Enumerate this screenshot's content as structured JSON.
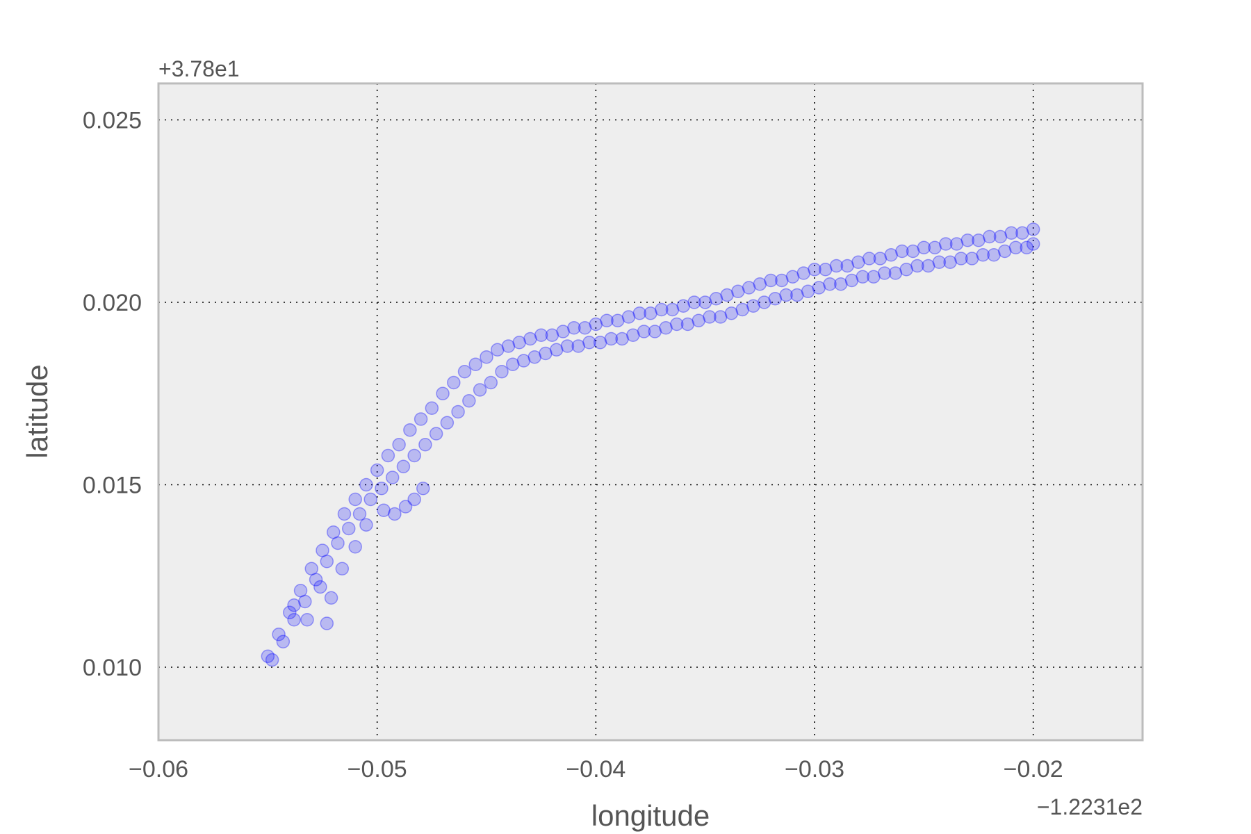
{
  "chart_data": {
    "type": "scatter",
    "title": "",
    "xlabel": "longitude",
    "ylabel": "latitude",
    "x_offset_label": "−1.2231e2",
    "y_offset_label": "+3.78e1",
    "xlim": [
      -0.06,
      -0.015
    ],
    "ylim": [
      0.008,
      0.026
    ],
    "xticks": [
      -0.06,
      -0.05,
      -0.04,
      -0.03,
      -0.02
    ],
    "xtick_labels": [
      "−0.06",
      "−0.05",
      "−0.04",
      "−0.03",
      "−0.02"
    ],
    "yticks": [
      0.01,
      0.015,
      0.02,
      0.025
    ],
    "ytick_labels": [
      "0.010",
      "0.015",
      "0.020",
      "0.025"
    ],
    "grid": true,
    "marker_color": "#0000ff",
    "marker_alpha": 0.22,
    "background_color": "#eeeeee",
    "series": [
      {
        "x": [
          -0.055,
          -0.0545,
          -0.054,
          -0.0535,
          -0.053,
          -0.0525,
          -0.052,
          -0.0515,
          -0.051,
          -0.0505,
          -0.05,
          -0.0495,
          -0.049,
          -0.0485,
          -0.048,
          -0.0475,
          -0.047,
          -0.0465,
          -0.046,
          -0.0455,
          -0.045,
          -0.0445,
          -0.044,
          -0.0435,
          -0.043,
          -0.0425,
          -0.042,
          -0.0415,
          -0.041,
          -0.0405,
          -0.04,
          -0.0395,
          -0.039,
          -0.0385,
          -0.038,
          -0.0375,
          -0.037,
          -0.0365,
          -0.036,
          -0.0355,
          -0.035,
          -0.0345,
          -0.034,
          -0.0335,
          -0.033,
          -0.0325,
          -0.032,
          -0.0315,
          -0.031,
          -0.0305,
          -0.03,
          -0.0295,
          -0.029,
          -0.0285,
          -0.028,
          -0.0275,
          -0.027,
          -0.0265,
          -0.026,
          -0.0255,
          -0.025,
          -0.0245,
          -0.024,
          -0.0235,
          -0.023,
          -0.0225,
          -0.022,
          -0.0215,
          -0.021,
          -0.0205,
          -0.02
        ],
        "y": [
          0.0103,
          0.0109,
          0.0115,
          0.0121,
          0.0127,
          0.0132,
          0.0137,
          0.0142,
          0.0146,
          0.015,
          0.0154,
          0.0158,
          0.0161,
          0.0165,
          0.0168,
          0.0171,
          0.0175,
          0.0178,
          0.0181,
          0.0183,
          0.0185,
          0.0187,
          0.0188,
          0.0189,
          0.019,
          0.0191,
          0.0191,
          0.0192,
          0.0193,
          0.0193,
          0.0194,
          0.0195,
          0.0195,
          0.0196,
          0.0197,
          0.0197,
          0.0198,
          0.0198,
          0.0199,
          0.02,
          0.02,
          0.0201,
          0.0202,
          0.0203,
          0.0204,
          0.0205,
          0.0206,
          0.0206,
          0.0207,
          0.0208,
          0.0209,
          0.0209,
          0.021,
          0.021,
          0.0211,
          0.0212,
          0.0212,
          0.0213,
          0.0214,
          0.0214,
          0.0215,
          0.0215,
          0.0216,
          0.0216,
          0.0217,
          0.0217,
          0.0218,
          0.0218,
          0.0219,
          0.0219,
          0.022
        ]
      },
      {
        "x": [
          -0.0548,
          -0.0543,
          -0.0538,
          -0.0533,
          -0.0528,
          -0.0523,
          -0.0518,
          -0.0513,
          -0.0508,
          -0.0503,
          -0.0498,
          -0.0493,
          -0.0488,
          -0.0483,
          -0.0478,
          -0.0473,
          -0.0468,
          -0.0463,
          -0.0458,
          -0.0453,
          -0.0448,
          -0.0443,
          -0.0438,
          -0.0433,
          -0.0428,
          -0.0423,
          -0.0418,
          -0.0413,
          -0.0408,
          -0.0403,
          -0.0398,
          -0.0393,
          -0.0388,
          -0.0383,
          -0.0378,
          -0.0373,
          -0.0368,
          -0.0363,
          -0.0358,
          -0.0353,
          -0.0348,
          -0.0343,
          -0.0338,
          -0.0333,
          -0.0328,
          -0.0323,
          -0.0318,
          -0.0313,
          -0.0308,
          -0.0303,
          -0.0298,
          -0.0293,
          -0.0288,
          -0.0283,
          -0.0278,
          -0.0273,
          -0.0268,
          -0.0263,
          -0.0258,
          -0.0253,
          -0.0248,
          -0.0243,
          -0.0238,
          -0.0233,
          -0.0228,
          -0.0223,
          -0.0218,
          -0.0213,
          -0.0208,
          -0.0203,
          -0.02
        ],
        "y": [
          0.0102,
          0.0107,
          0.0113,
          0.0118,
          0.0124,
          0.0129,
          0.0134,
          0.0138,
          0.0142,
          0.0146,
          0.0149,
          0.0152,
          0.0155,
          0.0158,
          0.0161,
          0.0164,
          0.0167,
          0.017,
          0.0173,
          0.0176,
          0.0178,
          0.0181,
          0.0183,
          0.0184,
          0.0185,
          0.0186,
          0.0187,
          0.0188,
          0.0188,
          0.0189,
          0.0189,
          0.019,
          0.019,
          0.0191,
          0.0192,
          0.0192,
          0.0193,
          0.0194,
          0.0194,
          0.0195,
          0.0196,
          0.0196,
          0.0197,
          0.0198,
          0.0199,
          0.02,
          0.0201,
          0.0202,
          0.0202,
          0.0203,
          0.0204,
          0.0205,
          0.0205,
          0.0206,
          0.0207,
          0.0207,
          0.0208,
          0.0208,
          0.0209,
          0.021,
          0.021,
          0.0211,
          0.0211,
          0.0212,
          0.0212,
          0.0213,
          0.0213,
          0.0214,
          0.0215,
          0.0215,
          0.0216
        ]
      },
      {
        "x": [
          -0.0538,
          -0.0532,
          -0.0526,
          -0.0523,
          -0.0521,
          -0.0516,
          -0.051,
          -0.0505,
          -0.0497,
          -0.0492,
          -0.0487,
          -0.0483,
          -0.0479
        ],
        "y": [
          0.0117,
          0.0113,
          0.0122,
          0.0112,
          0.0119,
          0.0127,
          0.0133,
          0.0139,
          0.0143,
          0.0142,
          0.0144,
          0.0146,
          0.0149
        ]
      }
    ]
  }
}
